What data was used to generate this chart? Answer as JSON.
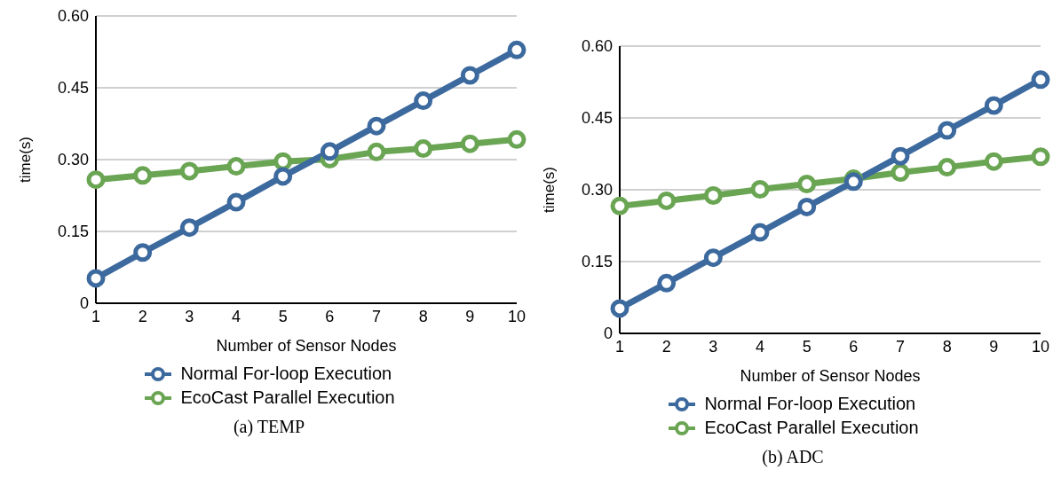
{
  "chart_data": [
    {
      "type": "line",
      "title": "(a) TEMP",
      "xlabel": "Number of Sensor Nodes",
      "ylabel": "time(s)",
      "categories": [
        "1",
        "2",
        "3",
        "4",
        "5",
        "6",
        "7",
        "8",
        "9",
        "10"
      ],
      "ylim": [
        0,
        0.6
      ],
      "yticks": [
        {
          "value": 0,
          "label": "0"
        },
        {
          "value": 0.15,
          "label": "0.15"
        },
        {
          "value": 0.3,
          "label": "0.30"
        },
        {
          "value": 0.45,
          "label": "0.45"
        },
        {
          "value": 0.6,
          "label": "0.60"
        }
      ],
      "grid": "y",
      "legend": "bottom",
      "marker": "circle",
      "line_style": "solid",
      "series": [
        {
          "name": "Normal For-loop Execution",
          "color": "#3d6a9e",
          "values": [
            0.052,
            0.106,
            0.158,
            0.211,
            0.265,
            0.317,
            0.37,
            0.423,
            0.476,
            0.529
          ]
        },
        {
          "name": "EcoCast Parallel Execution",
          "color": "#6aa553",
          "values": [
            0.258,
            0.267,
            0.276,
            0.286,
            0.296,
            0.301,
            0.316,
            0.323,
            0.333,
            0.342
          ]
        }
      ]
    },
    {
      "type": "line",
      "title": "(b) ADC",
      "xlabel": "Number of Sensor Nodes",
      "ylabel": "time(s)",
      "categories": [
        "1",
        "2",
        "3",
        "4",
        "5",
        "6",
        "7",
        "8",
        "9",
        "10"
      ],
      "ylim": [
        0,
        0.6
      ],
      "yticks": [
        {
          "value": 0,
          "label": "0"
        },
        {
          "value": 0.15,
          "label": "0.15"
        },
        {
          "value": 0.3,
          "label": "0.30"
        },
        {
          "value": 0.45,
          "label": "0.45"
        },
        {
          "value": 0.6,
          "label": "0.60"
        }
      ],
      "grid": "y",
      "legend": "bottom",
      "marker": "circle",
      "line_style": "solid",
      "series": [
        {
          "name": "Normal For-loop Execution",
          "color": "#3d6a9e",
          "values": [
            0.052,
            0.105,
            0.158,
            0.211,
            0.264,
            0.317,
            0.37,
            0.424,
            0.476,
            0.53
          ]
        },
        {
          "name": "EcoCast Parallel Execution",
          "color": "#6aa553",
          "values": [
            0.266,
            0.277,
            0.288,
            0.301,
            0.312,
            0.323,
            0.336,
            0.347,
            0.359,
            0.369
          ]
        }
      ]
    }
  ]
}
